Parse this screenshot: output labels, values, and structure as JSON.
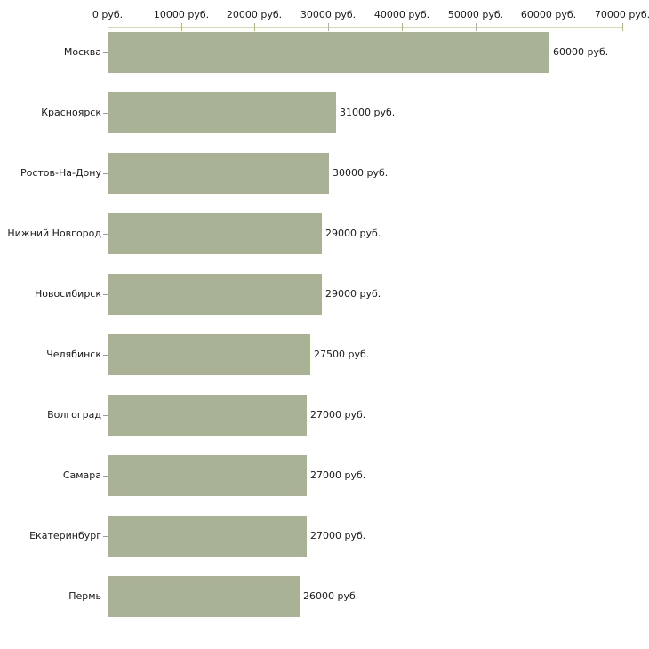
{
  "chart_data": {
    "type": "bar",
    "orientation": "horizontal",
    "title": "",
    "xlabel": "",
    "ylabel": "",
    "categories": [
      "Москва",
      "Красноярск",
      "Ростов-На-Дону",
      "Нижний Новгород",
      "Новосибирск",
      "Челябинск",
      "Волгоград",
      "Самара",
      "Екатеринбург",
      "Пермь"
    ],
    "values": [
      60000,
      31000,
      30000,
      29000,
      29000,
      27500,
      27000,
      27000,
      27000,
      26000
    ],
    "value_labels": [
      "60000 руб.",
      "31000 руб.",
      "30000 руб.",
      "29000 руб.",
      "29000 руб.",
      "27500 руб.",
      "27000 руб.",
      "27000 руб.",
      "27000 руб.",
      "26000 руб."
    ],
    "x_ticks": [
      {
        "value": 0,
        "label": "0 руб."
      },
      {
        "value": 10000,
        "label": "10000 руб."
      },
      {
        "value": 20000,
        "label": "20000 руб."
      },
      {
        "value": 30000,
        "label": "30000 руб."
      },
      {
        "value": 40000,
        "label": "40000 руб."
      },
      {
        "value": 50000,
        "label": "50000 руб."
      },
      {
        "value": 60000,
        "label": "60000 руб."
      },
      {
        "value": 70000,
        "label": "70000 руб."
      }
    ],
    "xlim": [
      0,
      70000
    ],
    "grid": false,
    "legend": "none",
    "colors": {
      "bar": "#a9b294",
      "x_axis_line": "#d7d8ba",
      "x_tick": "#b5b688",
      "y_axis_line": "#c9c9c9",
      "y_tick": "#9b9b9b",
      "text": "#1a1a1a",
      "background": "#ffffff"
    }
  }
}
